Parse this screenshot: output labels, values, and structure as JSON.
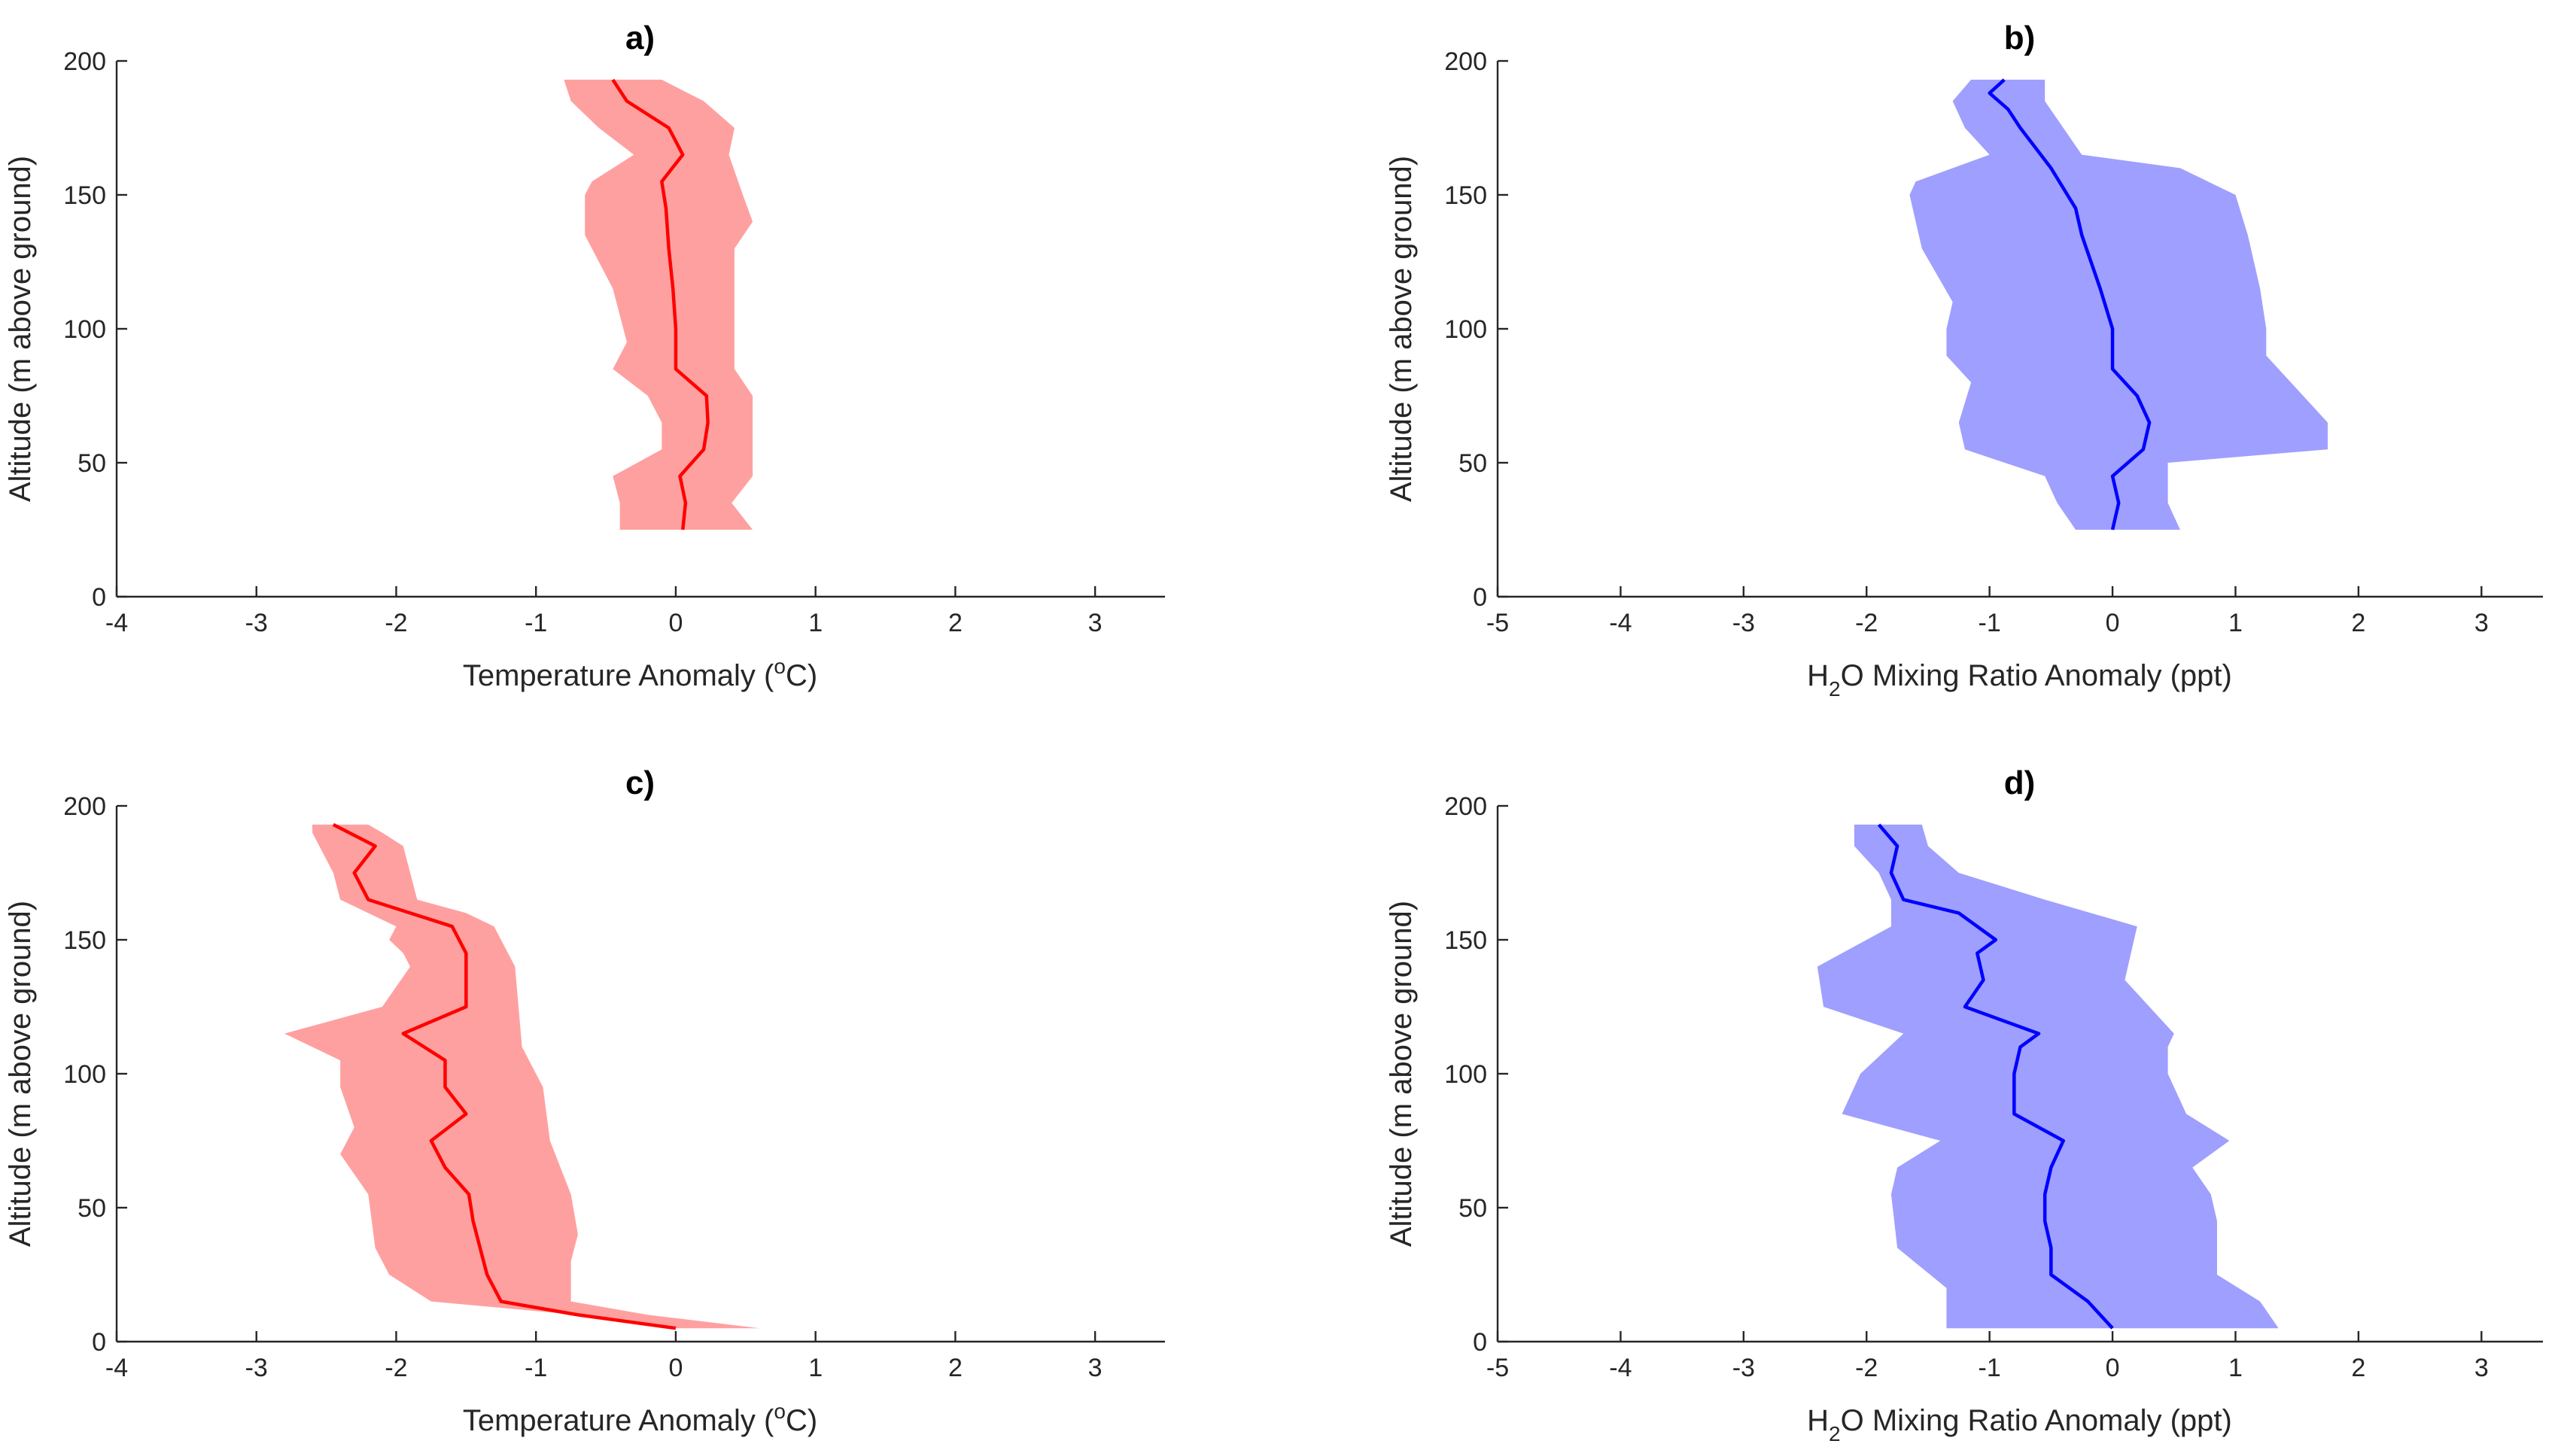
{
  "chart_data": [
    {
      "id": "a",
      "type": "area",
      "title": "a)",
      "xlabel": {
        "pre": "Temperature Anomaly (",
        "sup": "o",
        "post": "C)"
      },
      "ylabel": "Altitude (m above ground)",
      "xlim": [
        -4,
        3.5
      ],
      "ylim": [
        0,
        200
      ],
      "xticks": [
        -4,
        -3,
        -2,
        -1,
        0,
        1,
        2,
        3
      ],
      "yticks": [
        0,
        50,
        100,
        150,
        200
      ],
      "colors": {
        "line": "#ff0000",
        "band": "#ffa0a0"
      },
      "series": [
        {
          "name": "mean",
          "points": [
            [
              0.05,
              25
            ],
            [
              0.07,
              35
            ],
            [
              0.03,
              45
            ],
            [
              0.2,
              55
            ],
            [
              0.23,
              65
            ],
            [
              0.22,
              75
            ],
            [
              0.0,
              85
            ],
            [
              0.0,
              100
            ],
            [
              -0.02,
              115
            ],
            [
              -0.05,
              130
            ],
            [
              -0.07,
              145
            ],
            [
              -0.1,
              155
            ],
            [
              0.05,
              165
            ],
            [
              -0.05,
              175
            ],
            [
              -0.35,
              185
            ],
            [
              -0.45,
              193
            ]
          ]
        },
        {
          "name": "upper",
          "points": [
            [
              0.55,
              25
            ],
            [
              0.4,
              35
            ],
            [
              0.55,
              45
            ],
            [
              0.55,
              60
            ],
            [
              0.55,
              75
            ],
            [
              0.42,
              85
            ],
            [
              0.42,
              100
            ],
            [
              0.42,
              115
            ],
            [
              0.42,
              130
            ],
            [
              0.55,
              140
            ],
            [
              0.48,
              150
            ],
            [
              0.38,
              165
            ],
            [
              0.42,
              175
            ],
            [
              0.2,
              185
            ],
            [
              -0.1,
              193
            ]
          ]
        },
        {
          "name": "lower",
          "points": [
            [
              -0.4,
              25
            ],
            [
              -0.4,
              35
            ],
            [
              -0.45,
              45
            ],
            [
              -0.1,
              55
            ],
            [
              -0.1,
              65
            ],
            [
              -0.2,
              75
            ],
            [
              -0.45,
              85
            ],
            [
              -0.35,
              95
            ],
            [
              -0.45,
              115
            ],
            [
              -0.65,
              135
            ],
            [
              -0.65,
              150
            ],
            [
              -0.6,
              155
            ],
            [
              -0.3,
              165
            ],
            [
              -0.55,
              175
            ],
            [
              -0.75,
              185
            ],
            [
              -0.8,
              193
            ]
          ]
        }
      ]
    },
    {
      "id": "b",
      "type": "area",
      "title": "b)",
      "xlabel": {
        "pre": "H",
        "sub": "2",
        "post": "O Mixing Ratio Anomaly (ppt)"
      },
      "ylabel": "Altitude (m above ground)",
      "xlim": [
        -5,
        3.5
      ],
      "ylim": [
        0,
        200
      ],
      "xticks": [
        -5,
        -4,
        -3,
        -2,
        -1,
        0,
        1,
        2,
        3
      ],
      "yticks": [
        0,
        50,
        100,
        150,
        200
      ],
      "colors": {
        "line": "#0000ff",
        "band": "#9f9fff"
      },
      "series": [
        {
          "name": "mean",
          "points": [
            [
              0.0,
              25
            ],
            [
              0.05,
              35
            ],
            [
              0.0,
              45
            ],
            [
              0.25,
              55
            ],
            [
              0.3,
              65
            ],
            [
              0.2,
              75
            ],
            [
              0.0,
              85
            ],
            [
              0.0,
              100
            ],
            [
              -0.1,
              115
            ],
            [
              -0.25,
              135
            ],
            [
              -0.3,
              145
            ],
            [
              -0.5,
              160
            ],
            [
              -0.75,
              175
            ],
            [
              -0.85,
              182
            ],
            [
              -1.0,
              188
            ],
            [
              -0.88,
              193
            ]
          ]
        },
        {
          "name": "upper",
          "points": [
            [
              0.55,
              25
            ],
            [
              0.45,
              35
            ],
            [
              0.45,
              45
            ],
            [
              0.45,
              50
            ],
            [
              1.75,
              55
            ],
            [
              1.75,
              65
            ],
            [
              1.55,
              75
            ],
            [
              1.25,
              90
            ],
            [
              1.25,
              100
            ],
            [
              1.2,
              115
            ],
            [
              1.1,
              135
            ],
            [
              1.0,
              150
            ],
            [
              0.55,
              160
            ],
            [
              -0.25,
              165
            ],
            [
              -0.4,
              175
            ],
            [
              -0.55,
              185
            ],
            [
              -0.55,
              193
            ]
          ]
        },
        {
          "name": "lower",
          "points": [
            [
              -0.3,
              25
            ],
            [
              -0.45,
              35
            ],
            [
              -0.55,
              45
            ],
            [
              -1.2,
              55
            ],
            [
              -1.25,
              65
            ],
            [
              -1.15,
              80
            ],
            [
              -1.35,
              90
            ],
            [
              -1.35,
              100
            ],
            [
              -1.3,
              110
            ],
            [
              -1.55,
              130
            ],
            [
              -1.65,
              150
            ],
            [
              -1.6,
              155
            ],
            [
              -1.0,
              165
            ],
            [
              -1.2,
              175
            ],
            [
              -1.3,
              185
            ],
            [
              -1.15,
              193
            ]
          ]
        }
      ]
    },
    {
      "id": "c",
      "type": "area",
      "title": "c)",
      "xlabel": {
        "pre": "Temperature Anomaly (",
        "sup": "o",
        "post": "C)"
      },
      "ylabel": "Altitude (m above ground)",
      "xlim": [
        -4,
        3.5
      ],
      "ylim": [
        0,
        200
      ],
      "xticks": [
        -4,
        -3,
        -2,
        -1,
        0,
        1,
        2,
        3
      ],
      "yticks": [
        0,
        50,
        100,
        150,
        200
      ],
      "colors": {
        "line": "#ff0000",
        "band": "#ffa0a0"
      },
      "series": [
        {
          "name": "mean",
          "points": [
            [
              0.0,
              5
            ],
            [
              -0.7,
              10
            ],
            [
              -1.25,
              15
            ],
            [
              -1.35,
              25
            ],
            [
              -1.4,
              35
            ],
            [
              -1.45,
              45
            ],
            [
              -1.48,
              55
            ],
            [
              -1.65,
              65
            ],
            [
              -1.75,
              75
            ],
            [
              -1.5,
              85
            ],
            [
              -1.65,
              95
            ],
            [
              -1.65,
              105
            ],
            [
              -1.95,
              115
            ],
            [
              -1.5,
              125
            ],
            [
              -1.5,
              145
            ],
            [
              -1.6,
              155
            ],
            [
              -2.2,
              165
            ],
            [
              -2.3,
              175
            ],
            [
              -2.15,
              185
            ],
            [
              -2.45,
              193
            ]
          ]
        },
        {
          "name": "upper",
          "points": [
            [
              0.6,
              5
            ],
            [
              -0.2,
              10
            ],
            [
              -0.75,
              15
            ],
            [
              -0.75,
              30
            ],
            [
              -0.7,
              40
            ],
            [
              -0.75,
              55
            ],
            [
              -0.9,
              75
            ],
            [
              -0.95,
              95
            ],
            [
              -1.1,
              110
            ],
            [
              -1.15,
              140
            ],
            [
              -1.3,
              155
            ],
            [
              -1.5,
              160
            ],
            [
              -1.85,
              165
            ],
            [
              -1.9,
              175
            ],
            [
              -1.95,
              185
            ],
            [
              -2.1,
              190
            ],
            [
              -2.2,
              193
            ]
          ]
        },
        {
          "name": "lower",
          "points": [
            [
              0.0,
              5
            ],
            [
              -0.7,
              10
            ],
            [
              -1.75,
              15
            ],
            [
              -2.05,
              25
            ],
            [
              -2.15,
              35
            ],
            [
              -2.2,
              55
            ],
            [
              -2.4,
              70
            ],
            [
              -2.3,
              80
            ],
            [
              -2.4,
              95
            ],
            [
              -2.4,
              105
            ],
            [
              -2.8,
              115
            ],
            [
              -2.1,
              125
            ],
            [
              -1.9,
              140
            ],
            [
              -1.95,
              145
            ],
            [
              -2.05,
              150
            ],
            [
              -2.0,
              155
            ],
            [
              -2.4,
              165
            ],
            [
              -2.45,
              175
            ],
            [
              -2.6,
              190
            ],
            [
              -2.6,
              193
            ]
          ]
        }
      ]
    },
    {
      "id": "d",
      "type": "area",
      "title": "d)",
      "xlabel": {
        "pre": "H",
        "sub": "2",
        "post": "O Mixing Ratio Anomaly (ppt)"
      },
      "ylabel": "Altitude (m above ground)",
      "xlim": [
        -5,
        3.5
      ],
      "ylim": [
        0,
        200
      ],
      "xticks": [
        -5,
        -4,
        -3,
        -2,
        -1,
        0,
        1,
        2,
        3
      ],
      "yticks": [
        0,
        50,
        100,
        150,
        200
      ],
      "colors": {
        "line": "#0000ff",
        "band": "#9f9fff"
      },
      "series": [
        {
          "name": "mean",
          "points": [
            [
              0.0,
              5
            ],
            [
              -0.2,
              15
            ],
            [
              -0.5,
              25
            ],
            [
              -0.5,
              35
            ],
            [
              -0.55,
              45
            ],
            [
              -0.55,
              55
            ],
            [
              -0.5,
              65
            ],
            [
              -0.4,
              75
            ],
            [
              -0.8,
              85
            ],
            [
              -0.8,
              100
            ],
            [
              -0.75,
              110
            ],
            [
              -0.6,
              115
            ],
            [
              -1.2,
              125
            ],
            [
              -1.05,
              135
            ],
            [
              -1.1,
              145
            ],
            [
              -0.95,
              150
            ],
            [
              -1.25,
              160
            ],
            [
              -1.7,
              165
            ],
            [
              -1.8,
              175
            ],
            [
              -1.75,
              185
            ],
            [
              -1.9,
              193
            ]
          ]
        },
        {
          "name": "upper",
          "points": [
            [
              1.35,
              5
            ],
            [
              1.2,
              15
            ],
            [
              0.85,
              25
            ],
            [
              0.85,
              45
            ],
            [
              0.8,
              55
            ],
            [
              0.65,
              65
            ],
            [
              0.95,
              75
            ],
            [
              0.6,
              85
            ],
            [
              0.45,
              100
            ],
            [
              0.45,
              110
            ],
            [
              0.5,
              115
            ],
            [
              0.1,
              135
            ],
            [
              0.2,
              155
            ],
            [
              -0.55,
              165
            ],
            [
              -1.25,
              175
            ],
            [
              -1.5,
              185
            ],
            [
              -1.55,
              193
            ]
          ]
        },
        {
          "name": "lower",
          "points": [
            [
              -1.35,
              5
            ],
            [
              -1.35,
              20
            ],
            [
              -1.75,
              35
            ],
            [
              -1.8,
              55
            ],
            [
              -1.75,
              65
            ],
            [
              -1.4,
              75
            ],
            [
              -2.2,
              85
            ],
            [
              -2.05,
              100
            ],
            [
              -1.7,
              115
            ],
            [
              -2.35,
              125
            ],
            [
              -2.4,
              140
            ],
            [
              -1.8,
              155
            ],
            [
              -1.8,
              165
            ],
            [
              -1.9,
              175
            ],
            [
              -2.1,
              185
            ],
            [
              -2.1,
              193
            ]
          ]
        }
      ]
    }
  ]
}
